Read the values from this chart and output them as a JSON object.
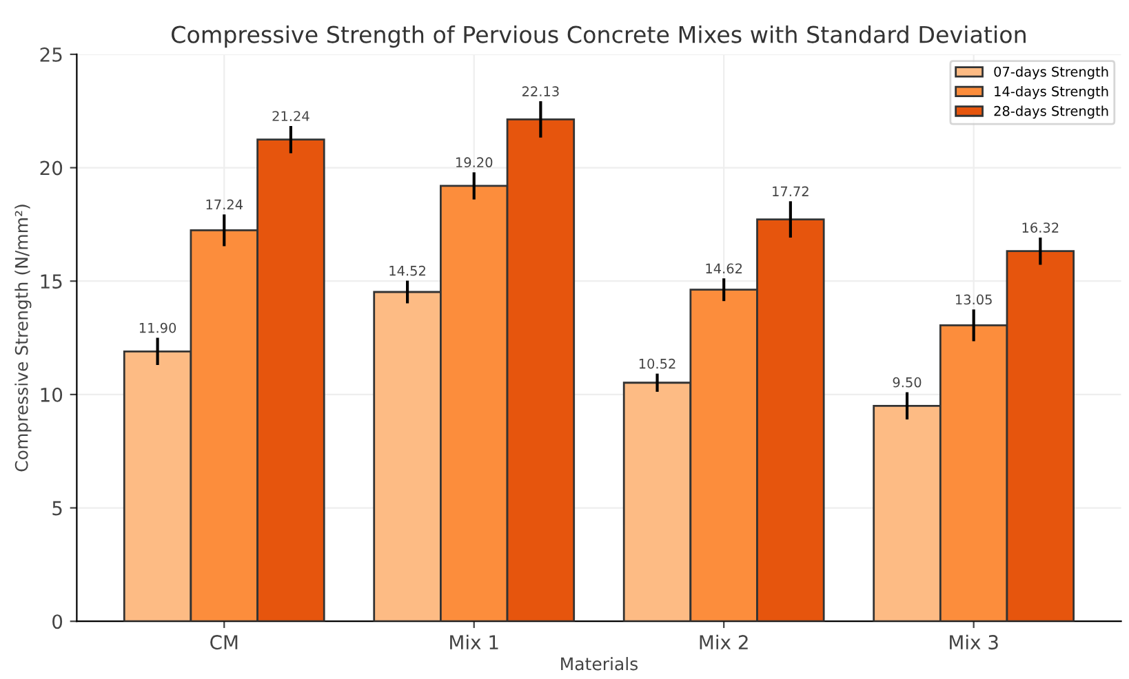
{
  "chart_data": {
    "type": "bar",
    "title": "Compressive Strength of Pervious Concrete Mixes with Standard Deviation",
    "xlabel": "Materials",
    "ylabel": "Compressive Strength (N/mm²)",
    "categories": [
      "CM",
      "Mix 1",
      "Mix 2",
      "Mix 3"
    ],
    "series": [
      {
        "name": "07-days Strength",
        "color": "#fdbb84",
        "values": [
          11.9,
          14.52,
          10.52,
          9.5
        ],
        "errors": [
          0.6,
          0.5,
          0.4,
          0.6
        ],
        "value_labels": [
          "11.90",
          "14.52",
          "10.52",
          "9.50"
        ]
      },
      {
        "name": "14-days Strength",
        "color": "#fc8d3c",
        "values": [
          17.24,
          19.2,
          14.62,
          13.05
        ],
        "errors": [
          0.7,
          0.6,
          0.5,
          0.7
        ],
        "value_labels": [
          "17.24",
          "19.20",
          "14.62",
          "13.05"
        ]
      },
      {
        "name": "28-days Strength",
        "color": "#e6550d",
        "values": [
          21.24,
          22.13,
          17.72,
          16.32
        ],
        "errors": [
          0.6,
          0.8,
          0.8,
          0.6
        ],
        "value_labels": [
          "21.24",
          "22.13",
          "17.72",
          "16.32"
        ]
      }
    ],
    "ylim": [
      0,
      25
    ],
    "yticks": [
      0,
      5,
      10,
      15,
      20,
      25
    ],
    "grid": true,
    "legend": "top right"
  }
}
